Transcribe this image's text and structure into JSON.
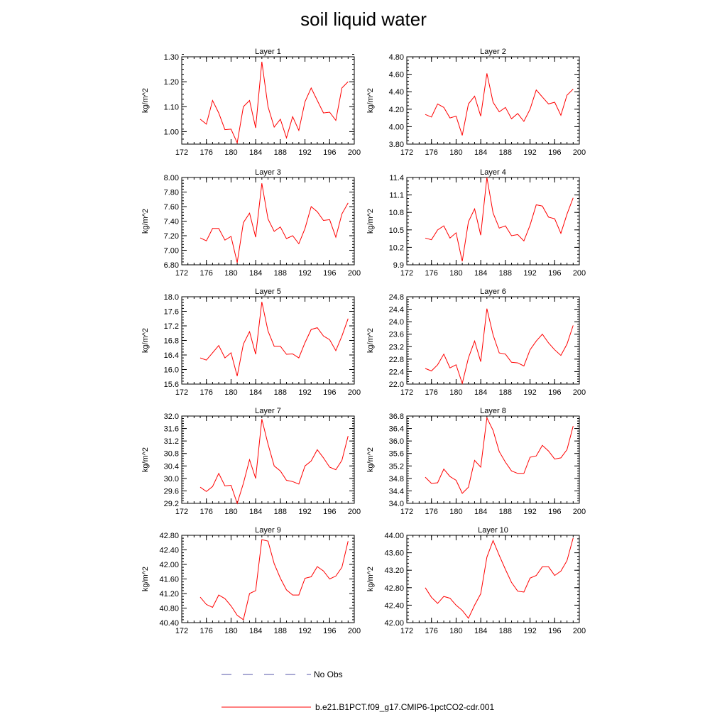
{
  "title": "soil liquid water",
  "colors": {
    "model": "#ff0000",
    "obs": "#5555aa",
    "axis": "#000000"
  },
  "legend": [
    {
      "label": "No Obs",
      "style": "dashed",
      "color": "#5555aa"
    },
    {
      "label": "b.e21.B1PCT.f09_g17.CMIP6-1pctCO2-cdr.001",
      "style": "solid",
      "color": "#ff0000"
    }
  ],
  "chart_data": [
    {
      "type": "line",
      "title": "Layer 1",
      "ylabel": "kg/m^2",
      "xlim": [
        172,
        200
      ],
      "xticks": [
        172,
        176,
        180,
        184,
        188,
        192,
        196,
        200
      ],
      "ylim": [
        0.95,
        1.3
      ],
      "yticks": [
        "1.00",
        "1.10",
        "1.20",
        "1.30"
      ],
      "yminor": 0.02,
      "x": [
        175,
        176,
        177,
        178,
        179,
        180,
        181,
        182,
        183,
        184,
        185,
        186,
        187,
        188,
        189,
        190,
        191,
        192,
        193,
        194,
        195,
        196,
        197,
        198,
        199
      ],
      "series": [
        {
          "values": [
            1.05,
            1.03,
            1.125,
            1.075,
            1.008,
            1.01,
            0.955,
            1.1,
            1.125,
            1.015,
            1.28,
            1.1,
            1.018,
            1.05,
            0.975,
            1.06,
            1.005,
            1.12,
            1.175,
            1.125,
            1.075,
            1.078,
            1.045,
            1.175,
            1.2
          ]
        }
      ]
    },
    {
      "type": "line",
      "title": "Layer 2",
      "ylabel": "kg/m^2",
      "xlim": [
        172,
        200
      ],
      "xticks": [
        172,
        176,
        180,
        184,
        188,
        192,
        196,
        200
      ],
      "ylim": [
        3.8,
        4.8
      ],
      "yticks": [
        "3.80",
        "4.00",
        "4.20",
        "4.40",
        "4.60",
        "4.80"
      ],
      "yminor": 0.04,
      "x": [
        175,
        176,
        177,
        178,
        179,
        180,
        181,
        182,
        183,
        184,
        185,
        186,
        187,
        188,
        189,
        190,
        191,
        192,
        193,
        194,
        195,
        196,
        197,
        198,
        199
      ],
      "series": [
        {
          "values": [
            4.14,
            4.11,
            4.26,
            4.22,
            4.1,
            4.12,
            3.9,
            4.26,
            4.35,
            4.12,
            4.61,
            4.28,
            4.17,
            4.22,
            4.09,
            4.15,
            4.06,
            4.2,
            4.42,
            4.34,
            4.26,
            4.28,
            4.13,
            4.36,
            4.43
          ]
        }
      ]
    },
    {
      "type": "line",
      "title": "Layer 3",
      "ylabel": "kg/m^2",
      "xlim": [
        172,
        200
      ],
      "xticks": [
        172,
        176,
        180,
        184,
        188,
        192,
        196,
        200
      ],
      "ylim": [
        6.8,
        8.0
      ],
      "yticks": [
        "6.80",
        "7.00",
        "7.20",
        "7.40",
        "7.60",
        "7.80",
        "8.00"
      ],
      "yminor": 0.04,
      "x": [
        175,
        176,
        177,
        178,
        179,
        180,
        181,
        182,
        183,
        184,
        185,
        186,
        187,
        188,
        189,
        190,
        191,
        192,
        193,
        194,
        195,
        196,
        197,
        198,
        199
      ],
      "series": [
        {
          "values": [
            7.17,
            7.13,
            7.3,
            7.3,
            7.14,
            7.19,
            6.83,
            7.38,
            7.51,
            7.18,
            7.92,
            7.43,
            7.26,
            7.32,
            7.16,
            7.2,
            7.09,
            7.3,
            7.6,
            7.53,
            7.41,
            7.42,
            7.18,
            7.5,
            7.65
          ]
        }
      ]
    },
    {
      "type": "line",
      "title": "Layer 4",
      "ylabel": "kg/m^2",
      "xlim": [
        172,
        200
      ],
      "xticks": [
        172,
        176,
        180,
        184,
        188,
        192,
        196,
        200
      ],
      "ylim": [
        9.9,
        11.4
      ],
      "yticks": [
        "9.9",
        "10.2",
        "10.5",
        "10.8",
        "11.1",
        "11.4"
      ],
      "yminor": 0.06,
      "x": [
        175,
        176,
        177,
        178,
        179,
        180,
        181,
        182,
        183,
        184,
        185,
        186,
        187,
        188,
        189,
        190,
        191,
        192,
        193,
        194,
        195,
        196,
        197,
        198,
        199
      ],
      "series": [
        {
          "values": [
            10.36,
            10.33,
            10.5,
            10.57,
            10.36,
            10.45,
            9.96,
            10.64,
            10.86,
            10.41,
            11.4,
            10.79,
            10.53,
            10.57,
            10.4,
            10.42,
            10.31,
            10.58,
            10.93,
            10.91,
            10.72,
            10.69,
            10.44,
            10.77,
            11.05
          ]
        }
      ]
    },
    {
      "type": "line",
      "title": "Layer 5",
      "ylabel": "kg/m^2",
      "xlim": [
        172,
        200
      ],
      "xticks": [
        172,
        176,
        180,
        184,
        188,
        192,
        196,
        200
      ],
      "ylim": [
        15.6,
        18.0
      ],
      "yticks": [
        "15.6",
        "16.0",
        "16.4",
        "16.8",
        "17.2",
        "17.6",
        "18.0"
      ],
      "yminor": 0.08,
      "x": [
        175,
        176,
        177,
        178,
        179,
        180,
        181,
        182,
        183,
        184,
        185,
        186,
        187,
        188,
        189,
        190,
        191,
        192,
        193,
        194,
        195,
        196,
        197,
        198,
        199
      ],
      "series": [
        {
          "values": [
            16.32,
            16.26,
            16.46,
            16.66,
            16.32,
            16.46,
            15.82,
            16.7,
            17.04,
            16.42,
            17.86,
            17.06,
            16.64,
            16.64,
            16.42,
            16.43,
            16.32,
            16.74,
            17.1,
            17.15,
            16.92,
            16.82,
            16.52,
            16.92,
            17.4
          ]
        }
      ]
    },
    {
      "type": "line",
      "title": "Layer 6",
      "ylabel": "kg/m^2",
      "xlim": [
        172,
        200
      ],
      "xticks": [
        172,
        176,
        180,
        184,
        188,
        192,
        196,
        200
      ],
      "ylim": [
        22.0,
        24.8
      ],
      "yticks": [
        "22.0",
        "22.4",
        "22.8",
        "23.2",
        "23.6",
        "24.0",
        "24.4",
        "24.8"
      ],
      "yminor": 0.08,
      "x": [
        175,
        176,
        177,
        178,
        179,
        180,
        181,
        182,
        183,
        184,
        185,
        186,
        187,
        188,
        189,
        190,
        191,
        192,
        193,
        194,
        195,
        196,
        197,
        198,
        199
      ],
      "series": [
        {
          "values": [
            22.5,
            22.42,
            22.62,
            22.96,
            22.52,
            22.62,
            22.02,
            22.84,
            23.38,
            22.72,
            24.42,
            23.58,
            23.0,
            22.96,
            22.7,
            22.68,
            22.58,
            23.1,
            23.38,
            23.6,
            23.32,
            23.1,
            22.92,
            23.28,
            23.88
          ]
        }
      ]
    },
    {
      "type": "line",
      "title": "Layer 7",
      "ylabel": "kg/m^2",
      "xlim": [
        172,
        200
      ],
      "xticks": [
        172,
        176,
        180,
        184,
        188,
        192,
        196,
        200
      ],
      "ylim": [
        29.2,
        32.0
      ],
      "yticks": [
        "29.2",
        "29.6",
        "30.0",
        "30.4",
        "30.8",
        "31.2",
        "31.6",
        "32.0"
      ],
      "yminor": 0.08,
      "x": [
        175,
        176,
        177,
        178,
        179,
        180,
        181,
        182,
        183,
        184,
        185,
        186,
        187,
        188,
        189,
        190,
        191,
        192,
        193,
        194,
        195,
        196,
        197,
        198,
        199
      ],
      "series": [
        {
          "values": [
            29.72,
            29.58,
            29.74,
            30.16,
            29.76,
            29.78,
            29.2,
            29.84,
            30.6,
            30.0,
            31.9,
            31.1,
            30.4,
            30.24,
            29.94,
            29.9,
            29.82,
            30.4,
            30.56,
            30.92,
            30.66,
            30.36,
            30.28,
            30.58,
            31.36
          ]
        }
      ]
    },
    {
      "type": "line",
      "title": "Layer 8",
      "ylabel": "kg/m^2",
      "xlim": [
        172,
        200
      ],
      "xticks": [
        172,
        176,
        180,
        184,
        188,
        192,
        196,
        200
      ],
      "ylim": [
        34.0,
        36.8
      ],
      "yticks": [
        "34.0",
        "34.4",
        "34.8",
        "35.2",
        "35.6",
        "36.0",
        "36.4",
        "36.8"
      ],
      "yminor": 0.08,
      "x": [
        175,
        176,
        177,
        178,
        179,
        180,
        181,
        182,
        183,
        184,
        185,
        186,
        187,
        188,
        189,
        190,
        191,
        192,
        193,
        194,
        195,
        196,
        197,
        198,
        199
      ],
      "series": [
        {
          "values": [
            34.84,
            34.64,
            34.66,
            35.1,
            34.86,
            34.74,
            34.32,
            34.52,
            35.38,
            35.16,
            36.74,
            36.34,
            35.66,
            35.32,
            35.04,
            34.96,
            34.96,
            35.48,
            35.52,
            35.86,
            35.68,
            35.42,
            35.46,
            35.72,
            36.48
          ]
        }
      ]
    },
    {
      "type": "line",
      "title": "Layer 9",
      "ylabel": "kg/m^2",
      "xlim": [
        172,
        200
      ],
      "xticks": [
        172,
        176,
        180,
        184,
        188,
        192,
        196,
        200
      ],
      "ylim": [
        40.4,
        42.8
      ],
      "yticks": [
        "40.40",
        "40.80",
        "41.20",
        "41.60",
        "42.00",
        "42.40",
        "42.80"
      ],
      "yminor": 0.08,
      "x": [
        175,
        176,
        177,
        178,
        179,
        180,
        181,
        182,
        183,
        184,
        185,
        186,
        187,
        188,
        189,
        190,
        191,
        192,
        193,
        194,
        195,
        196,
        197,
        198,
        199
      ],
      "series": [
        {
          "values": [
            41.1,
            40.9,
            40.82,
            41.16,
            41.06,
            40.86,
            40.6,
            40.48,
            41.2,
            41.28,
            42.68,
            42.64,
            42.02,
            41.62,
            41.3,
            41.16,
            41.16,
            41.62,
            41.66,
            41.94,
            41.82,
            41.6,
            41.68,
            41.92,
            42.64
          ]
        }
      ]
    },
    {
      "type": "line",
      "title": "Layer 10",
      "ylabel": "kg/m^2",
      "xlim": [
        172,
        200
      ],
      "xticks": [
        172,
        176,
        180,
        184,
        188,
        192,
        196,
        200
      ],
      "ylim": [
        42.0,
        44.0
      ],
      "yticks": [
        "42.00",
        "42.40",
        "42.80",
        "43.20",
        "43.60",
        "44.00"
      ],
      "yminor": 0.08,
      "x": [
        175,
        176,
        177,
        178,
        179,
        180,
        181,
        182,
        183,
        184,
        185,
        186,
        187,
        188,
        189,
        190,
        191,
        192,
        193,
        194,
        195,
        196,
        197,
        198,
        199
      ],
      "series": [
        {
          "values": [
            42.8,
            42.58,
            42.44,
            42.6,
            42.56,
            42.4,
            42.28,
            42.1,
            42.4,
            42.66,
            43.5,
            43.88,
            43.54,
            43.22,
            42.92,
            42.72,
            42.7,
            43.02,
            43.08,
            43.28,
            43.28,
            43.08,
            43.18,
            43.42,
            43.94
          ]
        }
      ]
    }
  ]
}
